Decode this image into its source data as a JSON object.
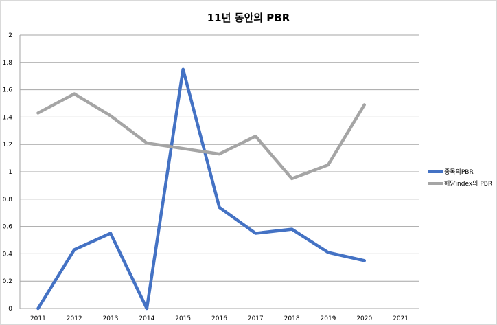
{
  "chart_data": {
    "type": "line",
    "title": "11년 동안의 PBR",
    "categories": [
      "2011",
      "2012",
      "2013",
      "2014",
      "2015",
      "2016",
      "2017",
      "2018",
      "2019",
      "2020",
      "2021"
    ],
    "y_ticks": [
      "0",
      "0.2",
      "0.4",
      "0.6",
      "0.8",
      "1",
      "1.2",
      "1.4",
      "1.6",
      "1.8",
      "2"
    ],
    "ylim": [
      0,
      2
    ],
    "grid": "horizontal",
    "legend_position": "right",
    "series": [
      {
        "name": "종목의PBR",
        "color": "#4472c4",
        "values": [
          0,
          0.43,
          0.55,
          0,
          1.75,
          0.74,
          0.55,
          0.58,
          0.41,
          0.35,
          null
        ]
      },
      {
        "name": "해당index의 PBR",
        "color": "#a5a5a5",
        "values": [
          1.43,
          1.57,
          1.41,
          1.21,
          1.17,
          1.13,
          1.26,
          0.95,
          1.05,
          1.49,
          null
        ]
      }
    ]
  }
}
